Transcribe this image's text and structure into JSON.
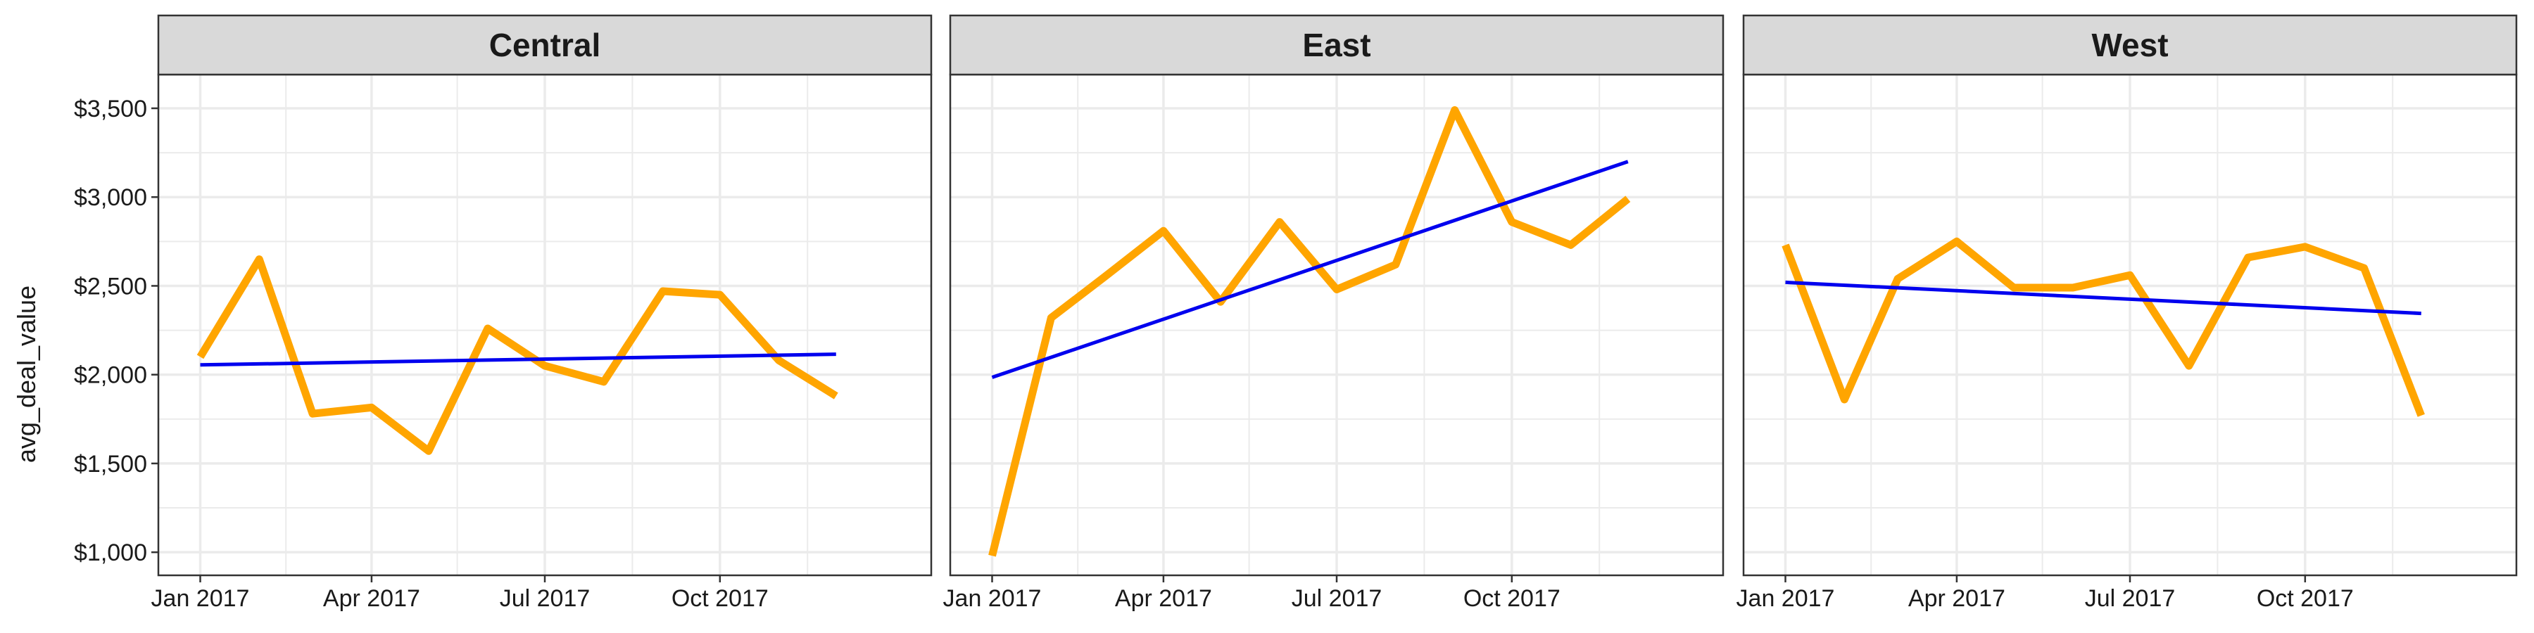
{
  "chart_data": {
    "type": "line",
    "ylabel": "avg_deal_value",
    "xlabel": "",
    "ylim": [
      870,
      3690
    ],
    "yticks": [
      1000,
      1500,
      2000,
      2500,
      3000,
      3500
    ],
    "ytick_labels": [
      "$1,000",
      "$1,500",
      "$2,000",
      "$2,500",
      "$3,000",
      "$3,500"
    ],
    "xlim": [
      "2016-12-10",
      "2018-01-20"
    ],
    "xtick_dates": [
      "2017-01-01",
      "2017-04-01",
      "2017-07-01",
      "2017-10-01"
    ],
    "xtick_labels": [
      "Jan 2017",
      "Apr 2017",
      "Jul 2017",
      "Oct 2017"
    ],
    "grid": true,
    "x": [
      "2017-01-01",
      "2017-02-01",
      "2017-03-01",
      "2017-04-01",
      "2017-05-01",
      "2017-06-01",
      "2017-07-01",
      "2017-08-01",
      "2017-09-01",
      "2017-10-01",
      "2017-11-01",
      "2017-12-01"
    ],
    "colors": {
      "series": "#FFA500",
      "trend": "#0000EE",
      "strip_fill": "#D9D9D9",
      "grid": "#EBEBEB"
    },
    "panels": [
      {
        "name": "Central",
        "values": [
          2100,
          2650,
          1780,
          1815,
          1570,
          2260,
          2050,
          1960,
          2470,
          2450,
          2080,
          1880
        ],
        "trend": [
          2055,
          2115
        ]
      },
      {
        "name": "East",
        "values": [
          980,
          2320,
          2550,
          2810,
          2410,
          2860,
          2480,
          2620,
          3490,
          2860,
          2730,
          2990
        ],
        "trend": [
          1985,
          3200
        ]
      },
      {
        "name": "West",
        "values": [
          2730,
          1860,
          2540,
          2750,
          2490,
          2490,
          2560,
          2050,
          2660,
          2720,
          2600,
          1770
        ],
        "trend": [
          2520,
          2345
        ]
      }
    ]
  }
}
